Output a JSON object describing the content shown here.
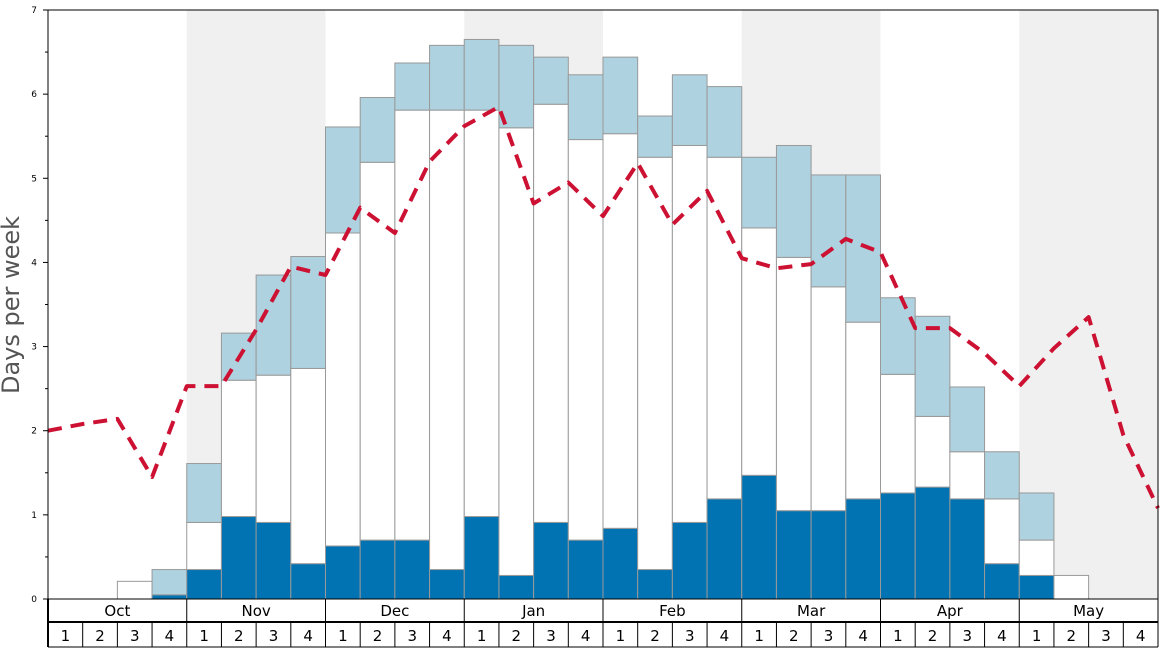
{
  "chart_data": {
    "type": "bar",
    "ylabel": "Days per week",
    "ylim": [
      0,
      7
    ],
    "yticks": [
      0,
      1,
      2,
      3,
      4,
      5,
      6,
      7
    ],
    "months": [
      "Oct",
      "Nov",
      "Dec",
      "Jan",
      "Feb",
      "Mar",
      "Apr",
      "May"
    ],
    "weeks": [
      "1",
      "2",
      "3",
      "4"
    ],
    "shaded_months": [
      "Nov",
      "Jan",
      "Mar",
      "May"
    ],
    "colors": {
      "dark": "#0173b2",
      "light": "#aed2df",
      "mid": "#ffffff",
      "line": "#cc1133",
      "shade": "#f0f0f0",
      "bar_stroke": "#999999"
    },
    "series": [
      {
        "key": "dark",
        "values": [
          0,
          0,
          0,
          0.05,
          0.35,
          0.98,
          0.91,
          0.42,
          0.63,
          0.7,
          0.7,
          0.35,
          0.98,
          0.28,
          0.91,
          0.7,
          0.84,
          0.35,
          0.91,
          1.19,
          1.47,
          1.05,
          1.05,
          1.19,
          1.26,
          1.33,
          1.19,
          0.42,
          0.28,
          0,
          0,
          0
        ]
      },
      {
        "key": "mid",
        "values": [
          0,
          0,
          0.21,
          0,
          0.56,
          1.62,
          1.75,
          2.32,
          3.72,
          4.49,
          5.11,
          5.46,
          4.83,
          5.32,
          4.97,
          4.76,
          4.69,
          4.9,
          4.48,
          4.06,
          2.94,
          3.01,
          2.66,
          2.1,
          1.41,
          0.84,
          0.56,
          0.77,
          0.42,
          0.28,
          0,
          0
        ]
      },
      {
        "key": "light",
        "values": [
          0,
          0,
          0,
          0.3,
          0.7,
          0.56,
          1.19,
          1.33,
          1.26,
          0.77,
          0.56,
          0.77,
          0.84,
          0.98,
          0.56,
          0.77,
          0.91,
          0.49,
          0.84,
          0.84,
          0.84,
          1.33,
          1.33,
          1.75,
          0.91,
          1.19,
          0.77,
          0.56,
          0.56,
          0,
          0,
          0
        ]
      }
    ],
    "average_line": [
      2.0,
      2.08,
      2.14,
      1.45,
      2.53,
      2.53,
      3.2,
      3.95,
      3.85,
      4.65,
      4.35,
      5.2,
      5.62,
      5.85,
      4.7,
      4.95,
      4.55,
      5.18,
      4.45,
      4.85,
      4.05,
      3.93,
      3.98,
      4.28,
      4.12,
      3.22,
      3.22,
      2.92,
      2.53,
      2.98,
      3.35,
      1.95,
      1.08
    ],
    "grid": false,
    "legend": "none"
  }
}
